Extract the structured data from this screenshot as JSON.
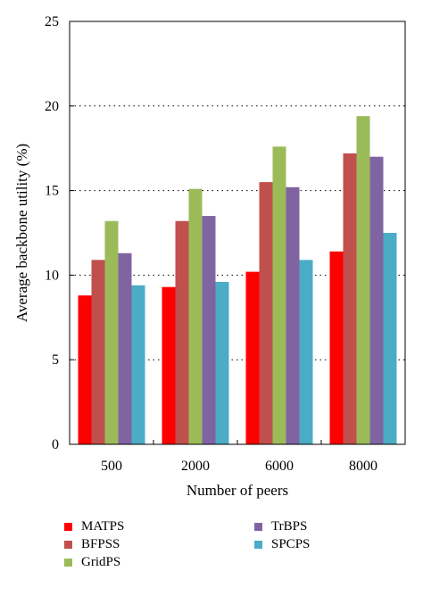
{
  "chart_data": {
    "type": "bar",
    "categories": [
      "500",
      "2000",
      "6000",
      "8000"
    ],
    "series": [
      {
        "name": "MATPS",
        "values": [
          8.8,
          9.3,
          10.2,
          11.4
        ],
        "color": "#ff0000"
      },
      {
        "name": "BFPSS",
        "values": [
          10.9,
          13.2,
          15.5,
          17.2
        ],
        "color": "#c0504d"
      },
      {
        "name": "GridPS",
        "values": [
          13.2,
          15.1,
          17.6,
          19.4
        ],
        "color": "#9bbb59"
      },
      {
        "name": "TrBPS",
        "values": [
          11.3,
          13.5,
          15.2,
          17.0
        ],
        "color": "#8064a2"
      },
      {
        "name": "SPCPS",
        "values": [
          9.4,
          9.6,
          10.9,
          12.5
        ],
        "color": "#4bacc6"
      }
    ],
    "xlabel": "Number of peers",
    "ylabel": "Average backbone utility (%)",
    "ylim": [
      0,
      25
    ],
    "yticks": [
      "0",
      "5",
      "10",
      "15",
      "20",
      "25"
    ],
    "grid": "dotted horizontal",
    "legend_position": "bottom"
  }
}
